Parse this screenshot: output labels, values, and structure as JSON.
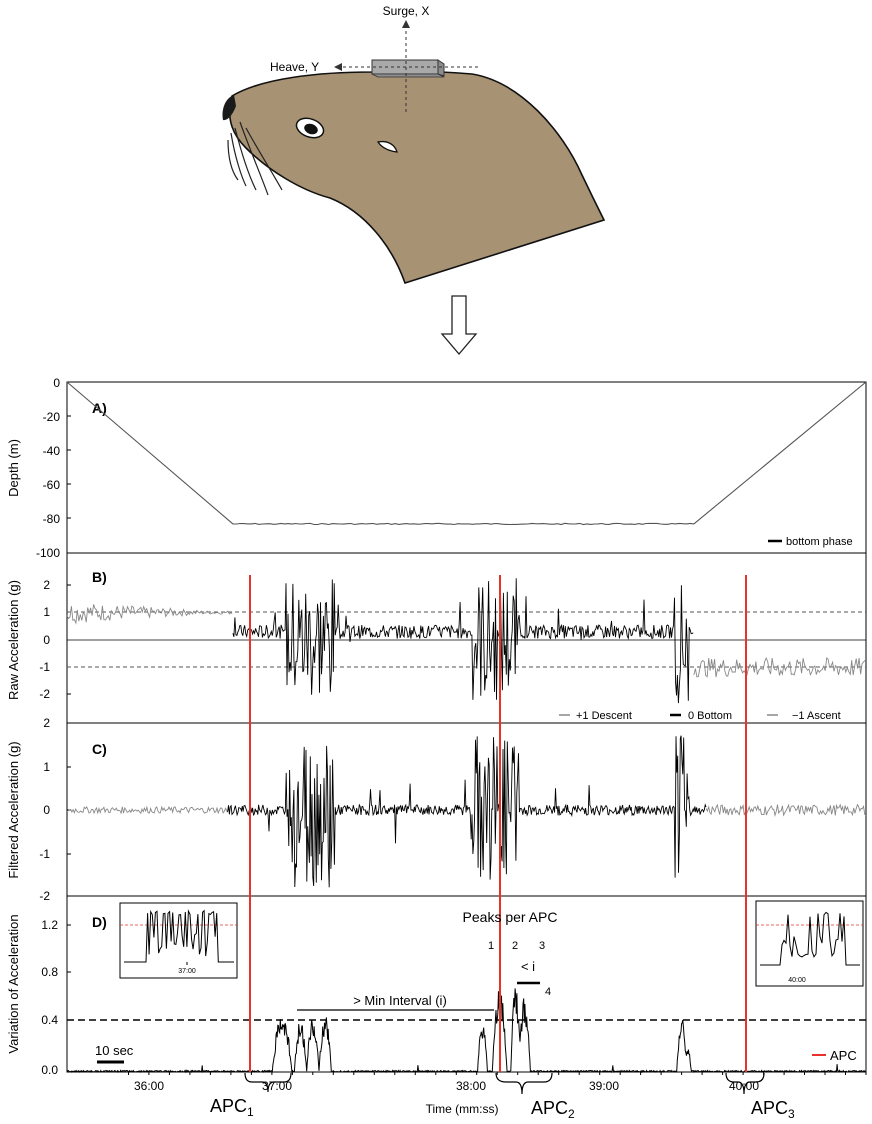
{
  "diagram": {
    "surge_label": "Surge, X",
    "heave_label": "Heave, Y",
    "colors": {
      "skin": "#a79274",
      "outline": "#111111",
      "tag": "#a9a9a9"
    }
  },
  "chart_data": [
    {
      "id": "A",
      "type": "line",
      "panel_label": "A)",
      "title": "",
      "xlabel": "",
      "ylabel": "Depth (m)",
      "ylim": [
        -100,
        0
      ],
      "yticks": [
        "0",
        "-20",
        "-40",
        "-60",
        "-80",
        "-100"
      ],
      "legend": "bottom phase",
      "legend_position": "bottom-right",
      "series": [
        {
          "values_x": [
            35.0,
            36.35,
            40.1,
            41.5
          ],
          "values_y": [
            0,
            -83,
            -83,
            0
          ]
        }
      ],
      "bottom_depth_approx": -83
    },
    {
      "id": "B",
      "type": "line",
      "panel_label": "B)",
      "title": "",
      "xlabel": "",
      "ylabel": "Raw Acceleration (g)",
      "ylim": [
        -2.5,
        2.5
      ],
      "yticks": [
        "2",
        "1",
        "0",
        "-1",
        "-2"
      ],
      "reference_lines": [
        1,
        -1
      ],
      "legend": [
        {
          "label": "+1 Descent",
          "color": "#888888"
        },
        {
          "label": "0 Bottom",
          "color": "#000000"
        },
        {
          "label": "−1 Ascent",
          "color": "#888888"
        }
      ],
      "legend_position": "bottom-right",
      "phases": [
        {
          "name": "descent",
          "start": 35.0,
          "end": 36.35,
          "mean_g": 1.0
        },
        {
          "name": "bottom",
          "start": 36.35,
          "end": 40.1,
          "mean_g": 0.3
        },
        {
          "name": "ascent",
          "start": 40.1,
          "end": 41.5,
          "mean_g": -1.0
        }
      ]
    },
    {
      "id": "C",
      "type": "line",
      "panel_label": "C)",
      "title": "",
      "xlabel": "",
      "ylabel": "Filtered Acceleration (g)",
      "ylim": [
        -2,
        2
      ],
      "yticks": [
        "2",
        "1",
        "0",
        "-1",
        "-2"
      ]
    },
    {
      "id": "D",
      "type": "line",
      "panel_label": "D)",
      "title": "",
      "xlabel": "Time (mm:ss)",
      "ylabel": "Variation of Acceleration",
      "ylim": [
        0,
        1.3
      ],
      "yticks": [
        "1.2",
        "0.8",
        "0.4",
        "0.0"
      ],
      "xticks": [
        "36:00",
        "37:00",
        "38:00",
        "39:00",
        "40:00"
      ],
      "threshold": 0.4,
      "apc_lines": [
        36.75,
        38.38,
        40.05
      ],
      "legend": [
        {
          "label": "APC",
          "color": "#e8322b"
        }
      ],
      "legend_position": "bottom-right",
      "scale_bar_label": "10 sec",
      "annotations": {
        "peaks_title": "Peaks per APC",
        "peak_numbers": [
          "1",
          "2",
          "3",
          "4"
        ],
        "min_interval": "> Min Interval (i)",
        "less_than_i": "< i"
      },
      "apc_labels": [
        {
          "base": "APC",
          "sub": "1"
        },
        {
          "base": "APC",
          "sub": "2"
        },
        {
          "base": "APC",
          "sub": "3"
        }
      ],
      "insets": [
        {
          "tick": "37:00",
          "threshold_color": "#e8322b"
        },
        {
          "tick": "40:00",
          "threshold_color": "#e8322b"
        }
      ]
    }
  ],
  "colors": {
    "apc": "#e8322b",
    "signal": "#000000",
    "descent_ascent": "#888888"
  }
}
